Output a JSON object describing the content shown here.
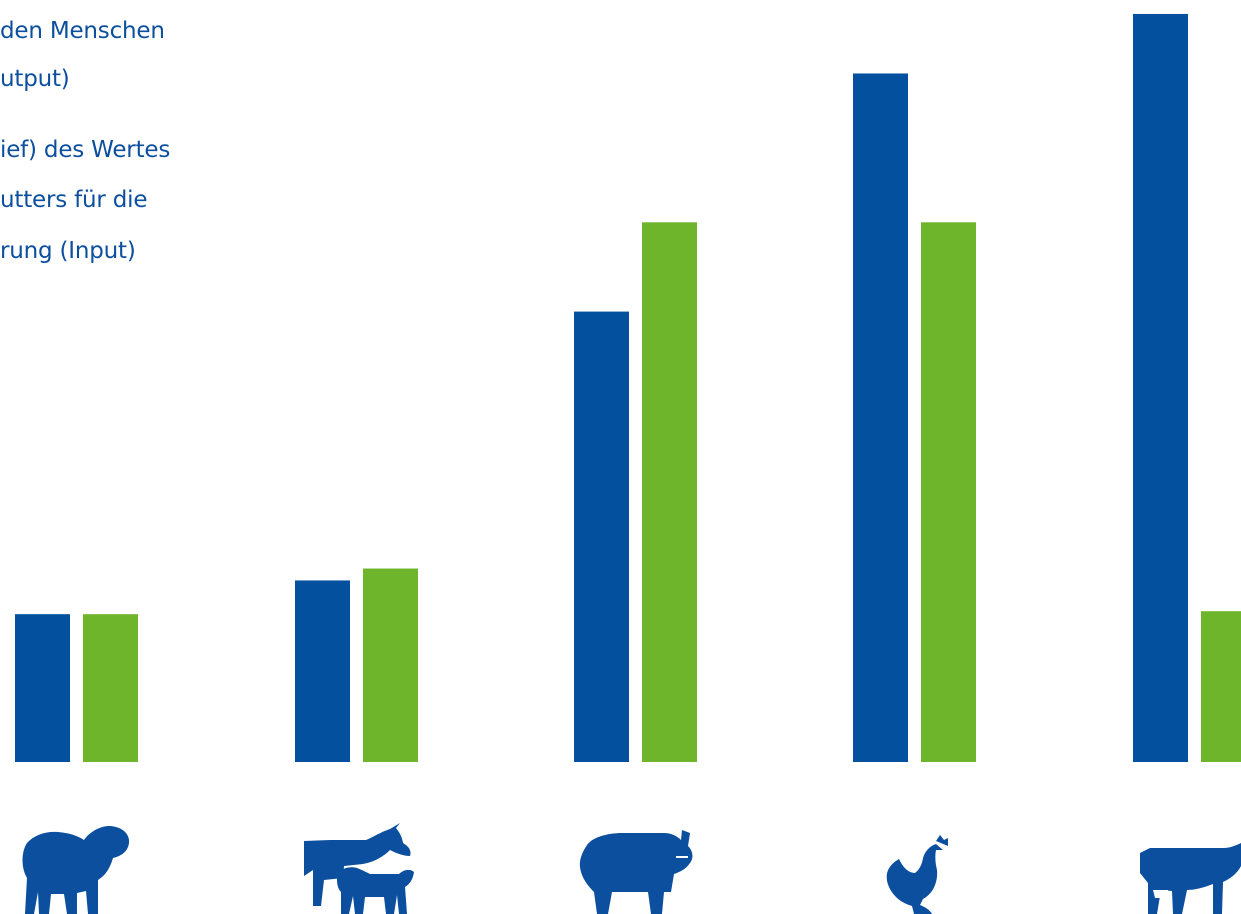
{
  "legend": {
    "output_lines": [
      "den Menschen",
      "utput)"
    ],
    "input_lines": [
      "ief) des Wertes",
      "utters für die",
      "rung (Input)"
    ]
  },
  "colors": {
    "output": "#02509e",
    "input": "#6fb52c",
    "icon": "#0b4f9e"
  },
  "chart_data": {
    "type": "bar",
    "categories": [
      "sheep-icon",
      "cow-calf-icon",
      "pig-icon",
      "chicken-icon",
      "dairy-cow-icon"
    ],
    "series": [
      {
        "key": "output",
        "values": [
          149,
          183,
          454,
          694,
          754
        ]
      },
      {
        "key": "input",
        "values": [
          149,
          195,
          544,
          544,
          152
        ]
      }
    ],
    "ylim": [
      0,
      760
    ],
    "grid": false
  }
}
